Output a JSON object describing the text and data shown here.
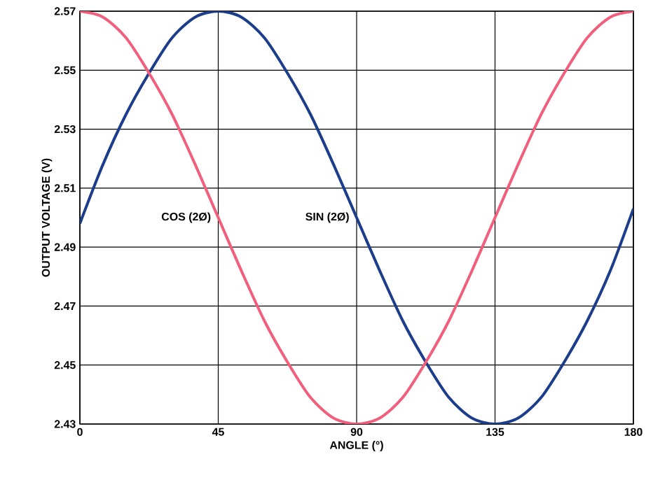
{
  "chart_data": {
    "type": "line",
    "xlabel": "ANGLE (°)",
    "ylabel": "OUTPUT VOLTAGE (V)",
    "x": [
      0,
      7.5,
      15,
      22.5,
      30,
      37.5,
      45,
      52.5,
      60,
      67.5,
      75,
      82.5,
      90,
      97.5,
      105,
      112.5,
      120,
      127.5,
      135,
      142.5,
      150,
      157.5,
      165,
      172.5,
      180
    ],
    "series": [
      {
        "name": "SIN (2Ø)",
        "color": "#1c3c8c",
        "values": [
          2.498,
          2.518,
          2.535,
          2.549,
          2.561,
          2.568,
          2.57,
          2.568,
          2.561,
          2.549,
          2.535,
          2.518,
          2.5,
          2.482,
          2.465,
          2.451,
          2.439,
          2.432,
          2.43,
          2.432,
          2.439,
          2.451,
          2.465,
          2.482,
          2.503
        ]
      },
      {
        "name": "COS (2Ø)",
        "color": "#f0607c",
        "values": [
          2.57,
          2.568,
          2.561,
          2.549,
          2.535,
          2.518,
          2.5,
          2.482,
          2.465,
          2.451,
          2.439,
          2.432,
          2.43,
          2.432,
          2.439,
          2.451,
          2.465,
          2.482,
          2.5,
          2.518,
          2.535,
          2.549,
          2.561,
          2.568,
          2.57
        ]
      }
    ],
    "xlim": [
      0,
      180
    ],
    "ylim": [
      2.43,
      2.57
    ],
    "xticks": [
      0,
      45,
      90,
      135,
      180
    ],
    "yticks": [
      2.43,
      2.45,
      2.47,
      2.49,
      2.51,
      2.53,
      2.55,
      2.57
    ],
    "grid": true,
    "marker": "none",
    "line_style": "solid"
  }
}
